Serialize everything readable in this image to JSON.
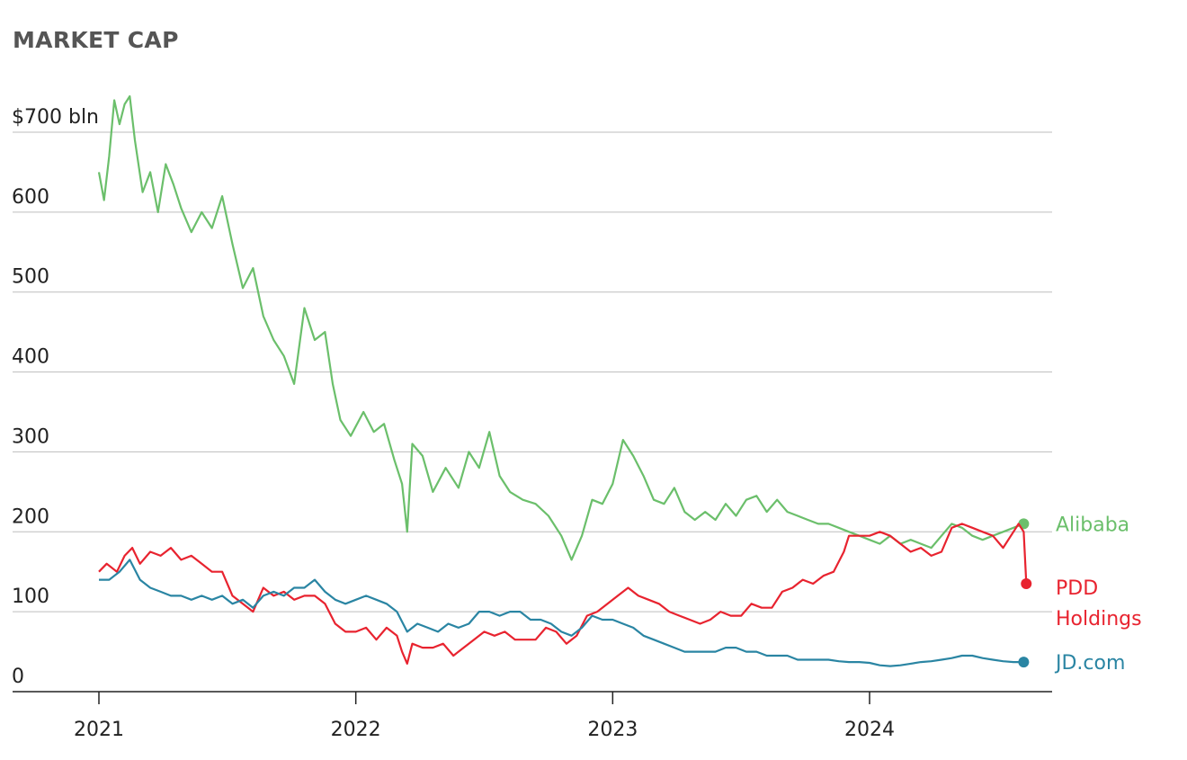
{
  "chart_data": {
    "type": "line",
    "title": "MARKET CAP",
    "xlabel": "",
    "ylabel": "",
    "ylim": [
      0,
      700
    ],
    "yticks": [
      {
        "value": 0,
        "label": "0"
      },
      {
        "value": 100,
        "label": "100"
      },
      {
        "value": 200,
        "label": "200"
      },
      {
        "value": 300,
        "label": "300"
      },
      {
        "value": 400,
        "label": "400"
      },
      {
        "value": 500,
        "label": "500"
      },
      {
        "value": 600,
        "label": "600"
      },
      {
        "value": 700,
        "label": "$700 bln"
      }
    ],
    "xlim": [
      2021.0,
      2024.7
    ],
    "xticks": [
      {
        "value": 2021,
        "label": "2021"
      },
      {
        "value": 2022,
        "label": "2022"
      },
      {
        "value": 2023,
        "label": "2023"
      },
      {
        "value": 2024,
        "label": "2024"
      }
    ],
    "grid": true,
    "series": [
      {
        "name": "Alibaba",
        "color": "#6bbf6b",
        "points": [
          [
            2021.0,
            650
          ],
          [
            2021.02,
            615
          ],
          [
            2021.04,
            670
          ],
          [
            2021.06,
            740
          ],
          [
            2021.08,
            710
          ],
          [
            2021.1,
            735
          ],
          [
            2021.12,
            745
          ],
          [
            2021.14,
            690
          ],
          [
            2021.17,
            625
          ],
          [
            2021.2,
            650
          ],
          [
            2021.23,
            600
          ],
          [
            2021.26,
            660
          ],
          [
            2021.29,
            635
          ],
          [
            2021.32,
            605
          ],
          [
            2021.36,
            575
          ],
          [
            2021.4,
            600
          ],
          [
            2021.44,
            580
          ],
          [
            2021.48,
            620
          ],
          [
            2021.52,
            560
          ],
          [
            2021.56,
            505
          ],
          [
            2021.6,
            530
          ],
          [
            2021.64,
            470
          ],
          [
            2021.68,
            440
          ],
          [
            2021.72,
            420
          ],
          [
            2021.76,
            385
          ],
          [
            2021.8,
            480
          ],
          [
            2021.84,
            440
          ],
          [
            2021.88,
            450
          ],
          [
            2021.91,
            385
          ],
          [
            2021.94,
            340
          ],
          [
            2021.98,
            320
          ],
          [
            2022.03,
            350
          ],
          [
            2022.07,
            325
          ],
          [
            2022.11,
            335
          ],
          [
            2022.15,
            290
          ],
          [
            2022.18,
            260
          ],
          [
            2022.2,
            200
          ],
          [
            2022.22,
            310
          ],
          [
            2022.26,
            295
          ],
          [
            2022.3,
            250
          ],
          [
            2022.35,
            280
          ],
          [
            2022.4,
            255
          ],
          [
            2022.44,
            300
          ],
          [
            2022.48,
            280
          ],
          [
            2022.52,
            325
          ],
          [
            2022.56,
            270
          ],
          [
            2022.6,
            250
          ],
          [
            2022.65,
            240
          ],
          [
            2022.7,
            235
          ],
          [
            2022.75,
            220
          ],
          [
            2022.8,
            195
          ],
          [
            2022.84,
            165
          ],
          [
            2022.88,
            195
          ],
          [
            2022.92,
            240
          ],
          [
            2022.96,
            235
          ],
          [
            2023.0,
            260
          ],
          [
            2023.04,
            315
          ],
          [
            2023.08,
            295
          ],
          [
            2023.12,
            270
          ],
          [
            2023.16,
            240
          ],
          [
            2023.2,
            235
          ],
          [
            2023.24,
            255
          ],
          [
            2023.28,
            225
          ],
          [
            2023.32,
            215
          ],
          [
            2023.36,
            225
          ],
          [
            2023.4,
            215
          ],
          [
            2023.44,
            235
          ],
          [
            2023.48,
            220
          ],
          [
            2023.52,
            240
          ],
          [
            2023.56,
            245
          ],
          [
            2023.6,
            225
          ],
          [
            2023.64,
            240
          ],
          [
            2023.68,
            225
          ],
          [
            2023.72,
            220
          ],
          [
            2023.76,
            215
          ],
          [
            2023.8,
            210
          ],
          [
            2023.84,
            210
          ],
          [
            2023.88,
            205
          ],
          [
            2023.92,
            200
          ],
          [
            2023.96,
            195
          ],
          [
            2024.0,
            190
          ],
          [
            2024.04,
            185
          ],
          [
            2024.08,
            195
          ],
          [
            2024.12,
            185
          ],
          [
            2024.16,
            190
          ],
          [
            2024.2,
            185
          ],
          [
            2024.24,
            180
          ],
          [
            2024.28,
            195
          ],
          [
            2024.32,
            210
          ],
          [
            2024.36,
            205
          ],
          [
            2024.4,
            195
          ],
          [
            2024.44,
            190
          ],
          [
            2024.48,
            195
          ],
          [
            2024.52,
            200
          ],
          [
            2024.56,
            205
          ],
          [
            2024.6,
            210
          ]
        ]
      },
      {
        "name": "PDD Holdings",
        "color": "#e8232f",
        "points": [
          [
            2021.0,
            150
          ],
          [
            2021.03,
            160
          ],
          [
            2021.07,
            150
          ],
          [
            2021.1,
            170
          ],
          [
            2021.13,
            180
          ],
          [
            2021.16,
            160
          ],
          [
            2021.2,
            175
          ],
          [
            2021.24,
            170
          ],
          [
            2021.28,
            180
          ],
          [
            2021.32,
            165
          ],
          [
            2021.36,
            170
          ],
          [
            2021.4,
            160
          ],
          [
            2021.44,
            150
          ],
          [
            2021.48,
            150
          ],
          [
            2021.52,
            120
          ],
          [
            2021.56,
            110
          ],
          [
            2021.6,
            100
          ],
          [
            2021.64,
            130
          ],
          [
            2021.68,
            120
          ],
          [
            2021.72,
            125
          ],
          [
            2021.76,
            115
          ],
          [
            2021.8,
            120
          ],
          [
            2021.84,
            120
          ],
          [
            2021.88,
            110
          ],
          [
            2021.92,
            85
          ],
          [
            2021.96,
            75
          ],
          [
            2022.0,
            75
          ],
          [
            2022.04,
            80
          ],
          [
            2022.08,
            65
          ],
          [
            2022.12,
            80
          ],
          [
            2022.16,
            70
          ],
          [
            2022.18,
            50
          ],
          [
            2022.2,
            35
          ],
          [
            2022.22,
            60
          ],
          [
            2022.26,
            55
          ],
          [
            2022.3,
            55
          ],
          [
            2022.34,
            60
          ],
          [
            2022.38,
            45
          ],
          [
            2022.42,
            55
          ],
          [
            2022.46,
            65
          ],
          [
            2022.5,
            75
          ],
          [
            2022.54,
            70
          ],
          [
            2022.58,
            75
          ],
          [
            2022.62,
            65
          ],
          [
            2022.66,
            65
          ],
          [
            2022.7,
            65
          ],
          [
            2022.74,
            80
          ],
          [
            2022.78,
            75
          ],
          [
            2022.82,
            60
          ],
          [
            2022.86,
            70
          ],
          [
            2022.9,
            95
          ],
          [
            2022.94,
            100
          ],
          [
            2022.98,
            110
          ],
          [
            2023.02,
            120
          ],
          [
            2023.06,
            130
          ],
          [
            2023.1,
            120
          ],
          [
            2023.14,
            115
          ],
          [
            2023.18,
            110
          ],
          [
            2023.22,
            100
          ],
          [
            2023.26,
            95
          ],
          [
            2023.3,
            90
          ],
          [
            2023.34,
            85
          ],
          [
            2023.38,
            90
          ],
          [
            2023.42,
            100
          ],
          [
            2023.46,
            95
          ],
          [
            2023.5,
            95
          ],
          [
            2023.54,
            110
          ],
          [
            2023.58,
            105
          ],
          [
            2023.62,
            105
          ],
          [
            2023.66,
            125
          ],
          [
            2023.7,
            130
          ],
          [
            2023.74,
            140
          ],
          [
            2023.78,
            135
          ],
          [
            2023.82,
            145
          ],
          [
            2023.86,
            150
          ],
          [
            2023.9,
            175
          ],
          [
            2023.92,
            195
          ],
          [
            2023.96,
            195
          ],
          [
            2024.0,
            195
          ],
          [
            2024.04,
            200
          ],
          [
            2024.08,
            195
          ],
          [
            2024.12,
            185
          ],
          [
            2024.16,
            175
          ],
          [
            2024.2,
            180
          ],
          [
            2024.24,
            170
          ],
          [
            2024.28,
            175
          ],
          [
            2024.32,
            205
          ],
          [
            2024.36,
            210
          ],
          [
            2024.4,
            205
          ],
          [
            2024.44,
            200
          ],
          [
            2024.48,
            195
          ],
          [
            2024.52,
            180
          ],
          [
            2024.56,
            200
          ],
          [
            2024.58,
            210
          ],
          [
            2024.6,
            200
          ],
          [
            2024.61,
            135
          ]
        ]
      },
      {
        "name": "JD.com",
        "color": "#2a85a3",
        "points": [
          [
            2021.0,
            140
          ],
          [
            2021.04,
            140
          ],
          [
            2021.08,
            150
          ],
          [
            2021.12,
            165
          ],
          [
            2021.16,
            140
          ],
          [
            2021.2,
            130
          ],
          [
            2021.24,
            125
          ],
          [
            2021.28,
            120
          ],
          [
            2021.32,
            120
          ],
          [
            2021.36,
            115
          ],
          [
            2021.4,
            120
          ],
          [
            2021.44,
            115
          ],
          [
            2021.48,
            120
          ],
          [
            2021.52,
            110
          ],
          [
            2021.56,
            115
          ],
          [
            2021.6,
            105
          ],
          [
            2021.64,
            120
          ],
          [
            2021.68,
            125
          ],
          [
            2021.72,
            120
          ],
          [
            2021.76,
            130
          ],
          [
            2021.8,
            130
          ],
          [
            2021.84,
            140
          ],
          [
            2021.88,
            125
          ],
          [
            2021.92,
            115
          ],
          [
            2021.96,
            110
          ],
          [
            2022.0,
            115
          ],
          [
            2022.04,
            120
          ],
          [
            2022.08,
            115
          ],
          [
            2022.12,
            110
          ],
          [
            2022.16,
            100
          ],
          [
            2022.2,
            75
          ],
          [
            2022.24,
            85
          ],
          [
            2022.28,
            80
          ],
          [
            2022.32,
            75
          ],
          [
            2022.36,
            85
          ],
          [
            2022.4,
            80
          ],
          [
            2022.44,
            85
          ],
          [
            2022.48,
            100
          ],
          [
            2022.52,
            100
          ],
          [
            2022.56,
            95
          ],
          [
            2022.6,
            100
          ],
          [
            2022.64,
            100
          ],
          [
            2022.68,
            90
          ],
          [
            2022.72,
            90
          ],
          [
            2022.76,
            85
          ],
          [
            2022.8,
            75
          ],
          [
            2022.84,
            70
          ],
          [
            2022.88,
            80
          ],
          [
            2022.92,
            95
          ],
          [
            2022.96,
            90
          ],
          [
            2023.0,
            90
          ],
          [
            2023.04,
            85
          ],
          [
            2023.08,
            80
          ],
          [
            2023.12,
            70
          ],
          [
            2023.16,
            65
          ],
          [
            2023.2,
            60
          ],
          [
            2023.24,
            55
          ],
          [
            2023.28,
            50
          ],
          [
            2023.32,
            50
          ],
          [
            2023.36,
            50
          ],
          [
            2023.4,
            50
          ],
          [
            2023.44,
            55
          ],
          [
            2023.48,
            55
          ],
          [
            2023.52,
            50
          ],
          [
            2023.56,
            50
          ],
          [
            2023.6,
            45
          ],
          [
            2023.64,
            45
          ],
          [
            2023.68,
            45
          ],
          [
            2023.72,
            40
          ],
          [
            2023.76,
            40
          ],
          [
            2023.8,
            40
          ],
          [
            2023.84,
            40
          ],
          [
            2023.88,
            38
          ],
          [
            2023.92,
            37
          ],
          [
            2023.96,
            37
          ],
          [
            2024.0,
            36
          ],
          [
            2024.04,
            33
          ],
          [
            2024.08,
            32
          ],
          [
            2024.12,
            33
          ],
          [
            2024.16,
            35
          ],
          [
            2024.2,
            37
          ],
          [
            2024.24,
            38
          ],
          [
            2024.28,
            40
          ],
          [
            2024.32,
            42
          ],
          [
            2024.36,
            45
          ],
          [
            2024.4,
            45
          ],
          [
            2024.44,
            42
          ],
          [
            2024.48,
            40
          ],
          [
            2024.52,
            38
          ],
          [
            2024.56,
            37
          ],
          [
            2024.6,
            37
          ]
        ]
      }
    ]
  }
}
